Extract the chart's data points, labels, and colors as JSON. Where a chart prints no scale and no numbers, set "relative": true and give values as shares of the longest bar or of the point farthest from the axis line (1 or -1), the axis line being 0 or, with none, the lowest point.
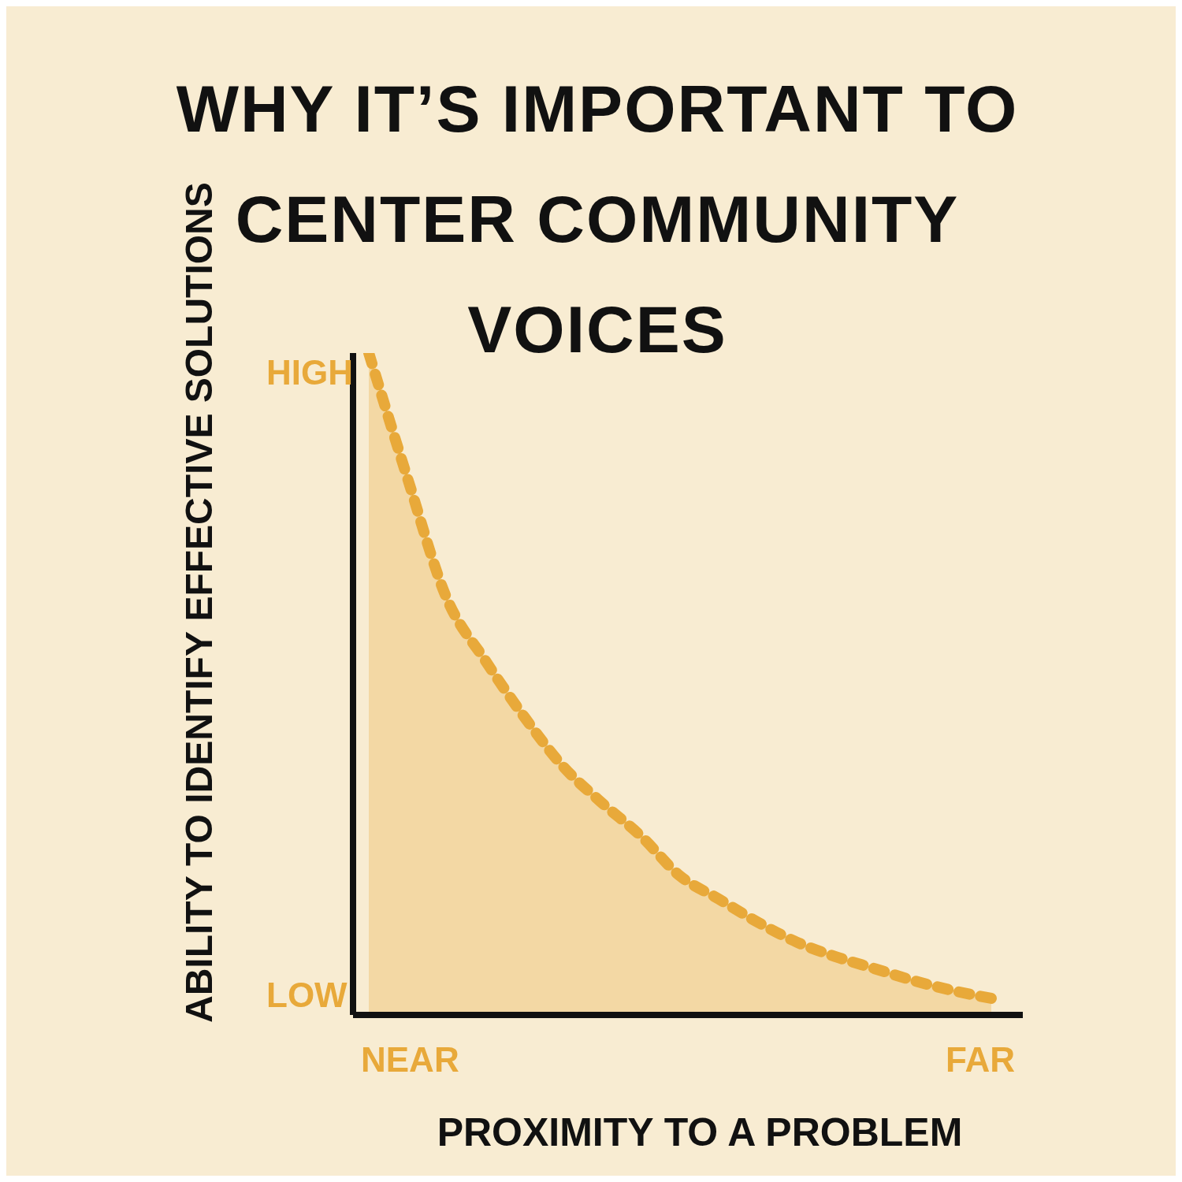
{
  "chart_data": {
    "type": "area",
    "title": "WHY IT’S IMPORTANT TO CENTER COMMUNITY VOICES",
    "xlabel": "PROXIMITY TO A PROBLEM",
    "ylabel": "ABILITY TO IDENTIFY EFFECTIVE SOLUTIONS",
    "categories": [
      null,
      null,
      null,
      null,
      null,
      null,
      null,
      null,
      null,
      null,
      null,
      null,
      null,
      null,
      null,
      null,
      null
    ],
    "series": [
      {
        "color": "#e8a93a",
        "values": [
          1.0,
          0.81,
          0.63,
          0.535,
          0.45,
          0.375,
          0.32,
          0.27,
          0.21,
          0.175,
          0.14,
          0.11,
          0.088,
          0.07,
          0.052,
          0.037,
          0.025
        ]
      }
    ],
    "relative": true,
    "annotations": [
      "HIGH",
      "LOW",
      "NEAR",
      "FAR"
    ],
    "line_style": "dashed"
  }
}
